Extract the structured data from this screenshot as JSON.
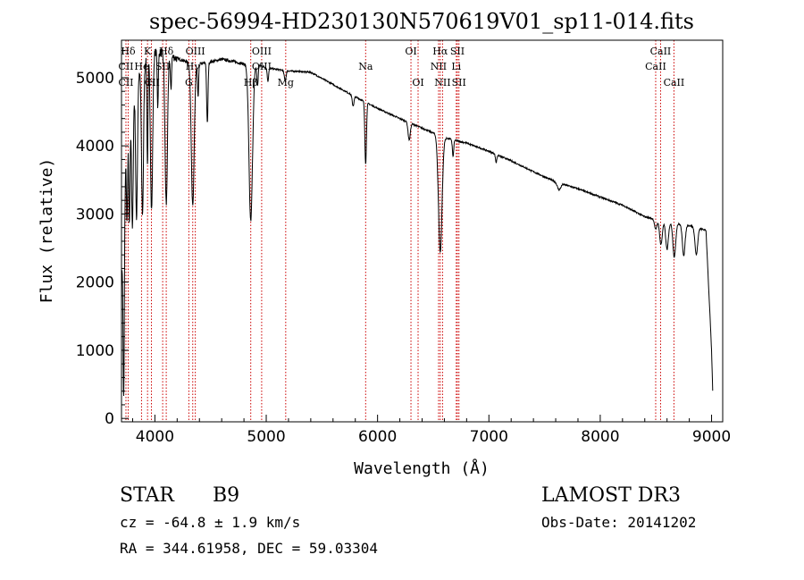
{
  "chart_data": {
    "type": "line",
    "title": "spec-56994-HD230130N570619V01_sp11-014.fits",
    "xlabel": "Wavelength (Å)",
    "ylabel": "Flux (relative)",
    "xlim": [
      3700,
      9100
    ],
    "ylim": [
      -50,
      5550
    ],
    "xticks": [
      4000,
      5000,
      6000,
      7000,
      8000,
      9000
    ],
    "yticks": [
      0,
      1000,
      2000,
      3000,
      4000,
      5000
    ],
    "grid": false,
    "continuum": [
      [
        3700,
        2000
      ],
      [
        3720,
        3300
      ],
      [
        3760,
        4300
      ],
      [
        3800,
        4700
      ],
      [
        3850,
        5000
      ],
      [
        3900,
        5250
      ],
      [
        3950,
        5350
      ],
      [
        4000,
        5380
      ],
      [
        4100,
        5350
      ],
      [
        4200,
        5280
      ],
      [
        4300,
        5230
      ],
      [
        4400,
        5200
      ],
      [
        4500,
        5230
      ],
      [
        4600,
        5270
      ],
      [
        4700,
        5240
      ],
      [
        4800,
        5200
      ],
      [
        4900,
        5200
      ],
      [
        5000,
        5150
      ],
      [
        5100,
        5120
      ],
      [
        5200,
        5100
      ],
      [
        5400,
        5080
      ],
      [
        5600,
        4900
      ],
      [
        5800,
        4720
      ],
      [
        6000,
        4550
      ],
      [
        6200,
        4400
      ],
      [
        6400,
        4260
      ],
      [
        6600,
        4120
      ],
      [
        6800,
        4040
      ],
      [
        7000,
        3920
      ],
      [
        7200,
        3780
      ],
      [
        7400,
        3620
      ],
      [
        7600,
        3470
      ],
      [
        7800,
        3370
      ],
      [
        8000,
        3250
      ],
      [
        8200,
        3130
      ],
      [
        8400,
        2960
      ],
      [
        8600,
        2880
      ],
      [
        8800,
        2830
      ],
      [
        8950,
        2760
      ],
      [
        9000,
        1000
      ],
      [
        9010,
        400
      ]
    ],
    "absorption_features": [
      {
        "center": 3720,
        "depth": 3000,
        "width": 6
      },
      {
        "center": 3750,
        "depth": 1200,
        "width": 5
      },
      {
        "center": 3771,
        "depth": 1600,
        "width": 6
      },
      {
        "center": 3798,
        "depth": 1900,
        "width": 7
      },
      {
        "center": 3835,
        "depth": 2000,
        "width": 8
      },
      {
        "center": 3889,
        "depth": 2200,
        "width": 9
      },
      {
        "center": 3933,
        "depth": 1600,
        "width": 5
      },
      {
        "center": 3970,
        "depth": 2300,
        "width": 10
      },
      {
        "center": 4026,
        "depth": 800,
        "width": 5
      },
      {
        "center": 4102,
        "depth": 2200,
        "width": 11
      },
      {
        "center": 4144,
        "depth": 500,
        "width": 5
      },
      {
        "center": 4340,
        "depth": 2100,
        "width": 13
      },
      {
        "center": 4388,
        "depth": 500,
        "width": 5
      },
      {
        "center": 4471,
        "depth": 900,
        "width": 6
      },
      {
        "center": 4861,
        "depth": 2300,
        "width": 16
      },
      {
        "center": 4922,
        "depth": 300,
        "width": 6
      },
      {
        "center": 5015,
        "depth": 200,
        "width": 6
      },
      {
        "center": 5170,
        "depth": 150,
        "width": 8
      },
      {
        "center": 5780,
        "depth": 150,
        "width": 8
      },
      {
        "center": 5893,
        "depth": 900,
        "width": 7
      },
      {
        "center": 6284,
        "depth": 250,
        "width": 10
      },
      {
        "center": 6563,
        "depth": 1700,
        "width": 16
      },
      {
        "center": 6678,
        "depth": 250,
        "width": 6
      },
      {
        "center": 7065,
        "depth": 120,
        "width": 6
      },
      {
        "center": 7630,
        "depth": 100,
        "width": 15
      },
      {
        "center": 8498,
        "depth": 150,
        "width": 10
      },
      {
        "center": 8545,
        "depth": 350,
        "width": 12
      },
      {
        "center": 8600,
        "depth": 400,
        "width": 12
      },
      {
        "center": 8665,
        "depth": 500,
        "width": 12
      },
      {
        "center": 8750,
        "depth": 450,
        "width": 12
      },
      {
        "center": 8863,
        "depth": 400,
        "width": 12
      }
    ],
    "line_markers": [
      {
        "label": "Hδ",
        "wavelength": 3760,
        "row": 0
      },
      {
        "label": "CII",
        "wavelength": 3740,
        "row": 1
      },
      {
        "label": "CII",
        "wavelength": 3740,
        "row": 2
      },
      {
        "label": "K",
        "wavelength": 3934,
        "row": 0
      },
      {
        "label": "He",
        "wavelength": 3880,
        "row": 1
      },
      {
        "label": "H",
        "wavelength": 3969,
        "row": 2
      },
      {
        "label": "Hδ",
        "wavelength": 4102,
        "row": 0
      },
      {
        "label": "SII",
        "wavelength": 4070,
        "row": 1
      },
      {
        "label": "CII",
        "wavelength": 3975,
        "row": 2
      },
      {
        "label": "OIII",
        "wavelength": 4363,
        "row": 0
      },
      {
        "label": "Hγ",
        "wavelength": 4340,
        "row": 1
      },
      {
        "label": "G",
        "wavelength": 4305,
        "row": 2
      },
      {
        "label": "OIII",
        "wavelength": 4959,
        "row": 0
      },
      {
        "label": "OIII",
        "wavelength": 4959,
        "row": 1
      },
      {
        "label": "Hβ",
        "wavelength": 4861,
        "row": 2
      },
      {
        "label": "Mg",
        "wavelength": 5175,
        "row": 2
      },
      {
        "label": "Na",
        "wavelength": 5893,
        "row": 1
      },
      {
        "label": "OI",
        "wavelength": 6300,
        "row": 0
      },
      {
        "label": "OI",
        "wavelength": 6364,
        "row": 2
      },
      {
        "label": "Hα",
        "wavelength": 6563,
        "row": 0
      },
      {
        "label": "NII",
        "wavelength": 6548,
        "row": 1
      },
      {
        "label": "NII",
        "wavelength": 6584,
        "row": 2
      },
      {
        "label": "SII",
        "wavelength": 6717,
        "row": 0
      },
      {
        "label": "Li",
        "wavelength": 6707,
        "row": 1
      },
      {
        "label": "SII",
        "wavelength": 6731,
        "row": 2
      },
      {
        "label": "CaII",
        "wavelength": 8542,
        "row": 0
      },
      {
        "label": "CaII",
        "wavelength": 8498,
        "row": 1
      },
      {
        "label": "CaII",
        "wavelength": 8662,
        "row": 2
      }
    ]
  },
  "info": {
    "object_type": "STAR",
    "subclass": "B9",
    "survey": "LAMOST DR3",
    "cz": "cz = -64.8 ± 1.9 km/s",
    "obs_date": "Obs-Date: 20141202",
    "coords": "RA = 344.61958, DEC =  59.03304"
  },
  "colors": {
    "spectrum": "#000000",
    "marker": "#cc0000",
    "axes": "#000000"
  }
}
